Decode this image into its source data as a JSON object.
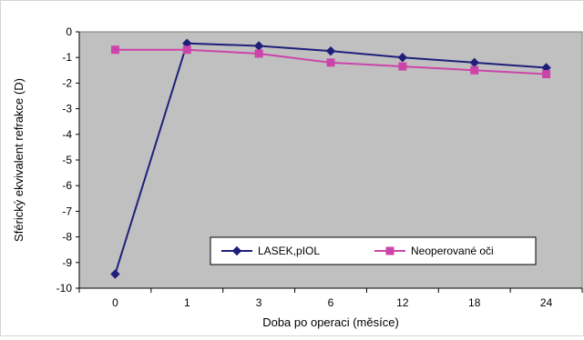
{
  "chart_data": {
    "type": "line",
    "title": "",
    "xlabel": "Doba po operaci (měsíce)",
    "ylabel": "Sférický ekvivalent refrakce (D)",
    "categories": [
      "0",
      "1",
      "3",
      "6",
      "12",
      "18",
      "24"
    ],
    "ylim": [
      -10,
      0
    ],
    "yticks": [
      "0",
      "-1",
      "-2",
      "-3",
      "-4",
      "-5",
      "-6",
      "-7",
      "-8",
      "-9",
      "-10"
    ],
    "grid": false,
    "legend_position": "bottom-right",
    "series": [
      {
        "name": "LASEK,pIOL",
        "values": [
          -9.45,
          -0.45,
          -0.55,
          -0.75,
          -1.0,
          -1.2,
          -1.4
        ],
        "color": "#1f1f7a",
        "marker": "diamond"
      },
      {
        "name": "Neoperované oči",
        "values": [
          -0.7,
          -0.7,
          -0.85,
          -1.2,
          -1.35,
          -1.5,
          -1.65
        ],
        "color": "#cc44aa",
        "marker": "square"
      }
    ],
    "plot_background": "#c0c0c0"
  }
}
